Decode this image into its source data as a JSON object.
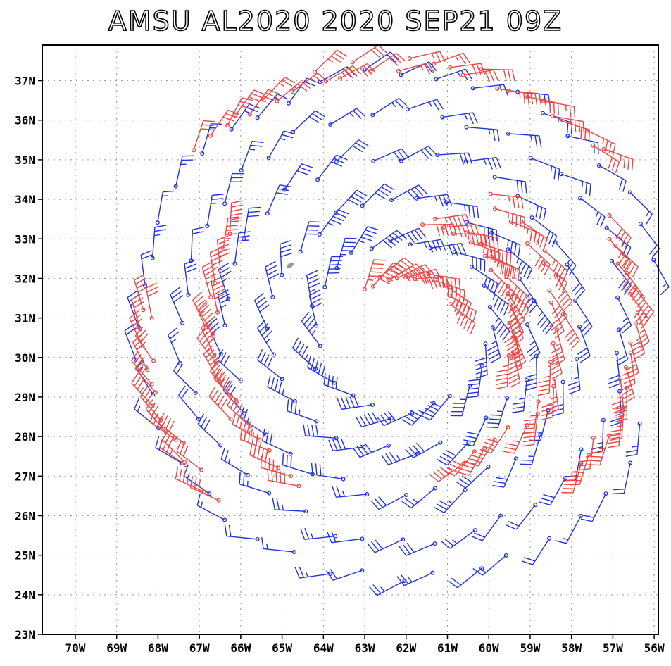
{
  "title": "AMSU AL2020 2020 SEP21 09Z",
  "colors": {
    "blue_series": "#2233dd",
    "red_series": "#ee4444",
    "frame": "#000000",
    "grid": "#999999",
    "blob": "#9a9a9a"
  },
  "chart_data": {
    "type": "wind-barb-map",
    "xlim": [
      70.8,
      55.9
    ],
    "ylim": [
      23,
      37.9
    ],
    "x_ticks": [
      "70W",
      "69W",
      "68W",
      "67W",
      "66W",
      "65W",
      "64W",
      "63W",
      "62W",
      "61W",
      "60W",
      "59W",
      "58W",
      "57W",
      "56W"
    ],
    "y_ticks": [
      "23N",
      "24N",
      "25N",
      "26N",
      "27N",
      "28N",
      "29N",
      "30N",
      "31N",
      "32N",
      "33N",
      "34N",
      "35N",
      "36N",
      "37N"
    ],
    "center": {
      "lon": 62.1,
      "lat": 30.8
    },
    "grid": true,
    "series": [
      {
        "name": "blue",
        "color": "#2233dd",
        "rings": [
          {
            "radius_deg": 2.2,
            "count": 26,
            "speed_kt": 45
          },
          {
            "radius_deg": 3.2,
            "count": 30,
            "speed_kt": 40
          },
          {
            "radius_deg": 4.3,
            "count": 36,
            "speed_kt": 30
          },
          {
            "radius_deg": 5.4,
            "count": 40,
            "speed_kt": 25
          },
          {
            "radius_deg": 6.4,
            "count": 44,
            "speed_kt": 20
          }
        ]
      },
      {
        "name": "red",
        "color": "#ee4444",
        "rings": [
          {
            "radius_deg": 1.3,
            "count": 12,
            "speed_kt": 55,
            "sector_deg": [
              20,
              140
            ]
          },
          {
            "radius_deg": 2.7,
            "count": 20,
            "speed_kt": 50,
            "sector_deg": [
              -20,
              80
            ]
          },
          {
            "radius_deg": 3.8,
            "count": 24,
            "speed_kt": 40,
            "sector_deg": [
              -70,
              60
            ]
          },
          {
            "radius_deg": 4.6,
            "count": 20,
            "speed_kt": 50,
            "sector_deg": [
              150,
              240
            ]
          },
          {
            "radius_deg": 6.2,
            "count": 18,
            "speed_kt": 35,
            "sector_deg": [
              175,
              225
            ]
          },
          {
            "radius_deg": 6.6,
            "count": 28,
            "speed_kt": 30,
            "sector_deg": [
              40,
              140
            ]
          },
          {
            "radius_deg": 5.6,
            "count": 20,
            "speed_kt": 40,
            "sector_deg": [
              -40,
              30
            ]
          }
        ]
      }
    ]
  }
}
